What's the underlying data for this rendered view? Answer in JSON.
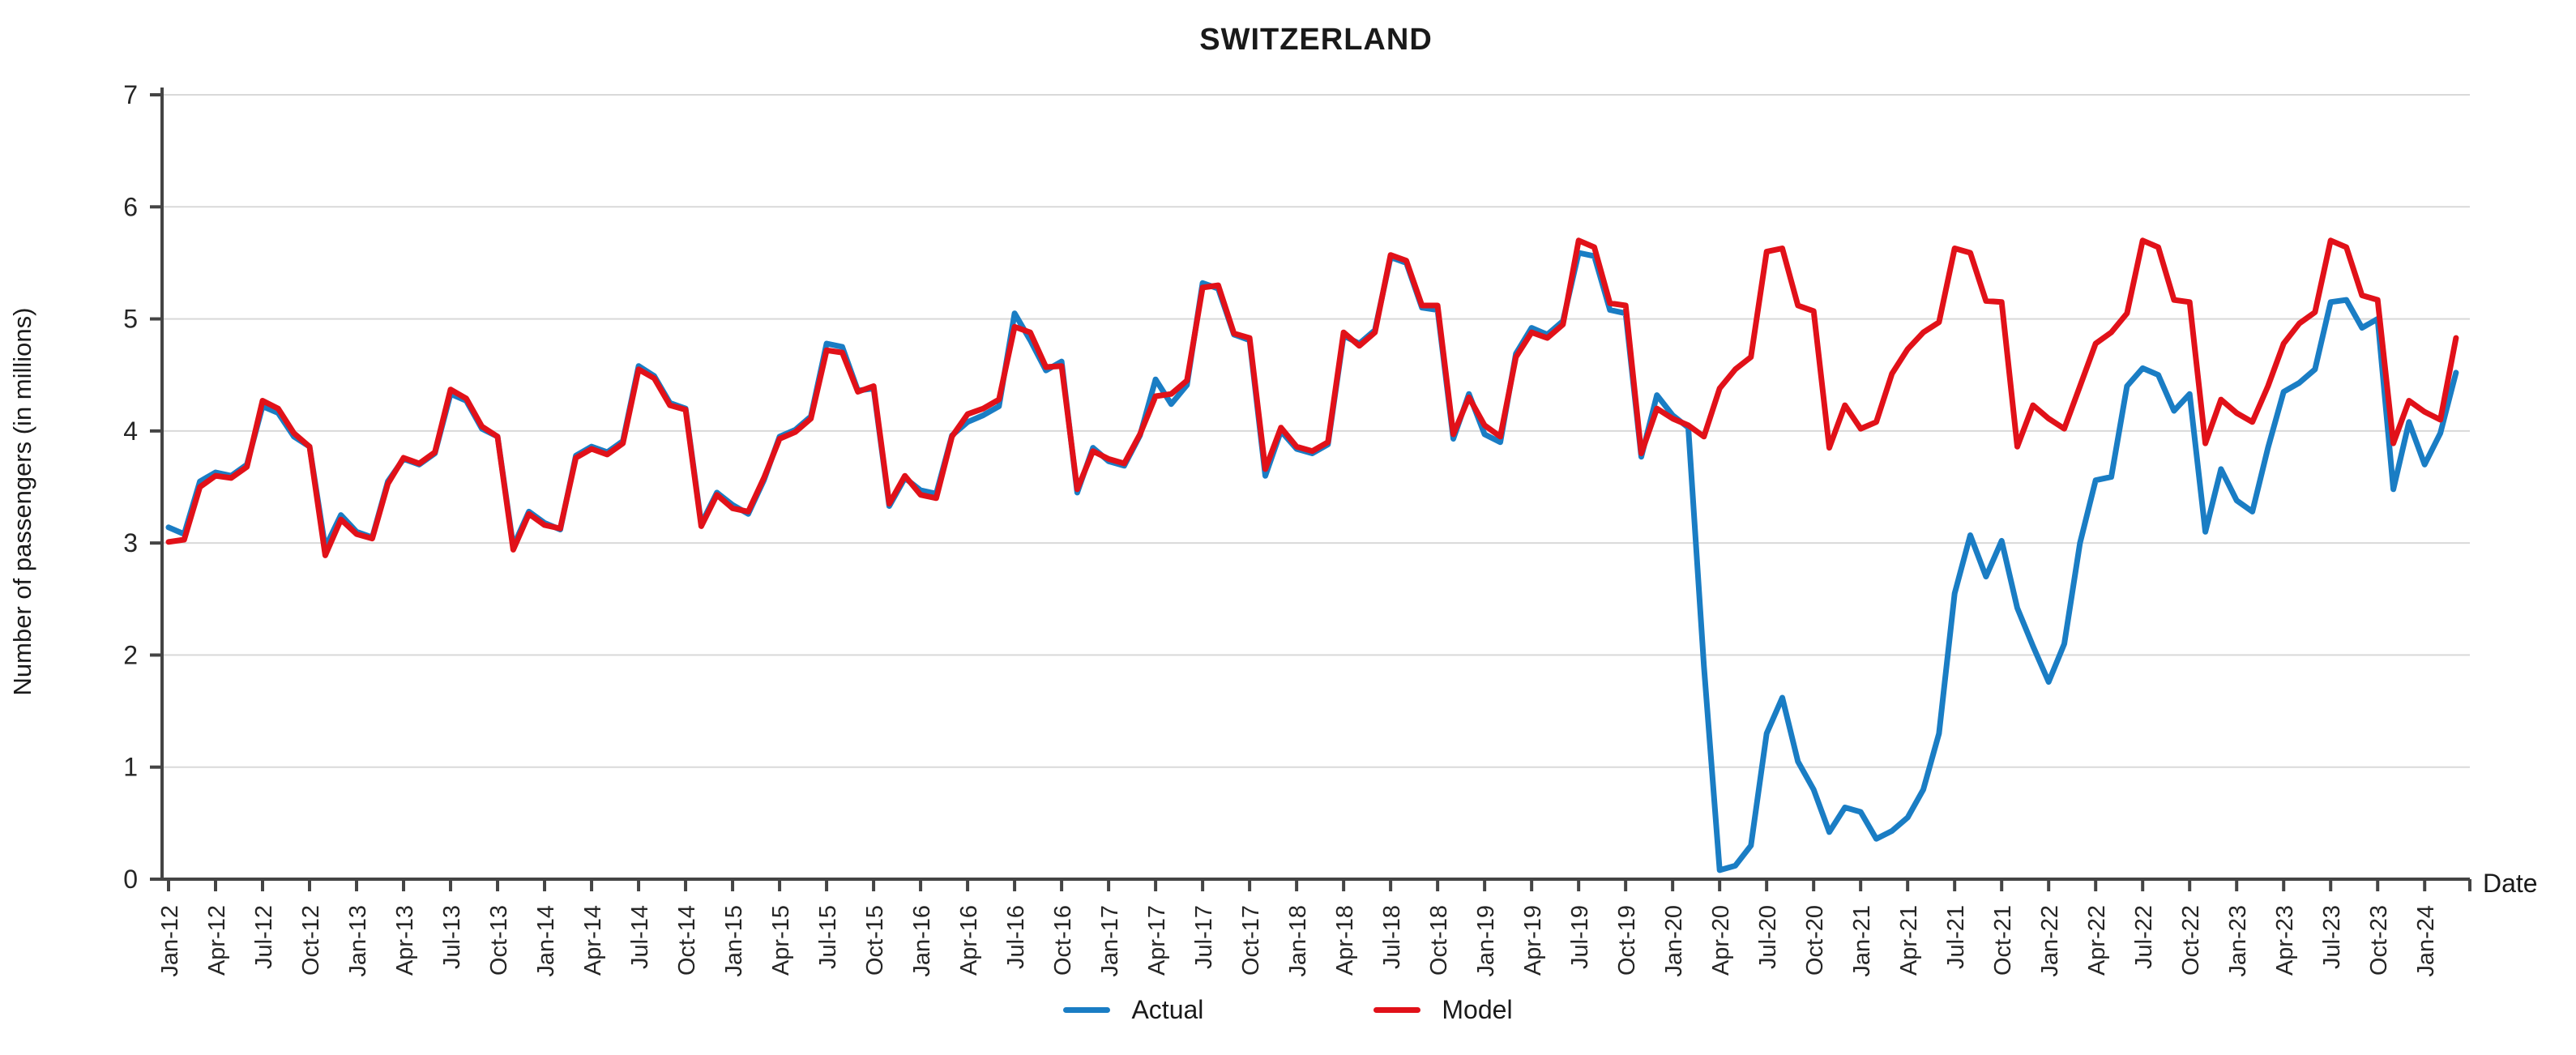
{
  "title": "SWITZERLAND",
  "y_axis": {
    "label": "Number of passengers (in millions)"
  },
  "x_axis": {
    "label": "Date"
  },
  "legend": {
    "actual_label": "Actual",
    "model_label": "Model"
  },
  "colors": {
    "actual": "#1a7dc4",
    "model": "#e11119",
    "gridline": "#d9d9d9",
    "axis": "#444444",
    "text": "#262626"
  },
  "chart_data": {
    "type": "line",
    "title": "SWITZERLAND",
    "xlabel": "Date",
    "ylabel": "Number of passengers (in millions)",
    "ylim": [
      0,
      7
    ],
    "y_ticks": [
      0,
      1,
      2,
      3,
      4,
      5,
      6,
      7
    ],
    "grid": true,
    "legend_position": "bottom",
    "x_tick_every_months": 3,
    "x": [
      "Jan-12",
      "Feb-12",
      "Mar-12",
      "Apr-12",
      "May-12",
      "Jun-12",
      "Jul-12",
      "Aug-12",
      "Sep-12",
      "Oct-12",
      "Nov-12",
      "Dec-12",
      "Jan-13",
      "Feb-13",
      "Mar-13",
      "Apr-13",
      "May-13",
      "Jun-13",
      "Jul-13",
      "Aug-13",
      "Sep-13",
      "Oct-13",
      "Nov-13",
      "Dec-13",
      "Jan-14",
      "Feb-14",
      "Mar-14",
      "Apr-14",
      "May-14",
      "Jun-14",
      "Jul-14",
      "Aug-14",
      "Sep-14",
      "Oct-14",
      "Nov-14",
      "Dec-14",
      "Jan-15",
      "Feb-15",
      "Mar-15",
      "Apr-15",
      "May-15",
      "Jun-15",
      "Jul-15",
      "Aug-15",
      "Sep-15",
      "Oct-15",
      "Nov-15",
      "Dec-15",
      "Jan-16",
      "Feb-16",
      "Mar-16",
      "Apr-16",
      "May-16",
      "Jun-16",
      "Jul-16",
      "Aug-16",
      "Sep-16",
      "Oct-16",
      "Nov-16",
      "Dec-16",
      "Jan-17",
      "Feb-17",
      "Mar-17",
      "Apr-17",
      "May-17",
      "Jun-17",
      "Jul-17",
      "Aug-17",
      "Sep-17",
      "Oct-17",
      "Nov-17",
      "Dec-17",
      "Jan-18",
      "Feb-18",
      "Mar-18",
      "Apr-18",
      "May-18",
      "Jun-18",
      "Jul-18",
      "Aug-18",
      "Sep-18",
      "Oct-18",
      "Nov-18",
      "Dec-18",
      "Jan-19",
      "Feb-19",
      "Mar-19",
      "Apr-19",
      "May-19",
      "Jun-19",
      "Jul-19",
      "Aug-19",
      "Sep-19",
      "Oct-19",
      "Nov-19",
      "Dec-19",
      "Jan-20",
      "Feb-20",
      "Mar-20",
      "Apr-20",
      "May-20",
      "Jun-20",
      "Jul-20",
      "Aug-20",
      "Sep-20",
      "Oct-20",
      "Nov-20",
      "Dec-20",
      "Jan-21",
      "Feb-21",
      "Mar-21",
      "Apr-21",
      "May-21",
      "Jun-21",
      "Jul-21",
      "Aug-21",
      "Sep-21",
      "Oct-21",
      "Nov-21",
      "Dec-21",
      "Jan-22",
      "Feb-22",
      "Mar-22",
      "Apr-22",
      "May-22",
      "Jun-22",
      "Jul-22",
      "Aug-22",
      "Sep-22",
      "Oct-22",
      "Nov-22",
      "Dec-22",
      "Jan-23",
      "Feb-23",
      "Mar-23",
      "Apr-23",
      "May-23",
      "Jun-23",
      "Jul-23",
      "Aug-23",
      "Sep-23",
      "Oct-23",
      "Nov-23",
      "Dec-23",
      "Jan-24",
      "Feb-24",
      "Mar-24"
    ],
    "series": [
      {
        "name": "Actual",
        "color": "#1a7dc4",
        "values": [
          3.14,
          3.08,
          3.55,
          3.63,
          3.6,
          3.7,
          4.22,
          4.16,
          3.95,
          3.86,
          2.96,
          3.25,
          3.1,
          3.05,
          3.55,
          3.75,
          3.7,
          3.8,
          4.33,
          4.27,
          4.02,
          3.95,
          2.97,
          3.28,
          3.18,
          3.12,
          3.78,
          3.86,
          3.81,
          3.91,
          4.58,
          4.49,
          4.25,
          4.2,
          3.17,
          3.45,
          3.34,
          3.26,
          3.56,
          3.95,
          4.01,
          4.13,
          4.78,
          4.75,
          4.36,
          4.38,
          3.33,
          3.58,
          3.47,
          3.44,
          3.96,
          4.08,
          4.14,
          4.22,
          5.05,
          4.81,
          4.54,
          4.62,
          3.45,
          3.85,
          3.73,
          3.69,
          3.96,
          4.46,
          4.24,
          4.41,
          5.32,
          5.27,
          4.86,
          4.81,
          3.6,
          4.0,
          3.84,
          3.8,
          3.88,
          4.85,
          4.78,
          4.9,
          5.55,
          5.5,
          5.1,
          5.08,
          3.93,
          4.33,
          3.97,
          3.9,
          4.69,
          4.92,
          4.86,
          4.98,
          5.59,
          5.56,
          5.08,
          5.05,
          3.77,
          4.32,
          4.14,
          4.03,
          1.9,
          0.08,
          0.12,
          0.3,
          1.3,
          1.62,
          1.05,
          0.8,
          0.42,
          0.64,
          0.6,
          0.36,
          0.43,
          0.55,
          0.8,
          1.3,
          2.55,
          3.07,
          2.7,
          3.02,
          2.42,
          2.08,
          1.76,
          2.1,
          3.0,
          3.56,
          3.59,
          4.4,
          4.56,
          4.5,
          4.18,
          4.33,
          3.1,
          3.66,
          3.38,
          3.28,
          3.85,
          4.35,
          4.43,
          4.55,
          5.15,
          5.17,
          4.92,
          5.0,
          3.48,
          4.08,
          3.7,
          3.98,
          4.52
        ]
      },
      {
        "name": "Model",
        "color": "#e11119",
        "values": [
          3.01,
          3.03,
          3.5,
          3.6,
          3.58,
          3.68,
          4.27,
          4.2,
          3.98,
          3.86,
          2.89,
          3.21,
          3.08,
          3.04,
          3.53,
          3.76,
          3.71,
          3.81,
          4.37,
          4.29,
          4.04,
          3.95,
          2.94,
          3.26,
          3.16,
          3.13,
          3.76,
          3.84,
          3.79,
          3.89,
          4.55,
          4.47,
          4.23,
          4.19,
          3.15,
          3.43,
          3.31,
          3.28,
          3.58,
          3.93,
          3.99,
          4.11,
          4.72,
          4.7,
          4.35,
          4.4,
          3.35,
          3.6,
          3.43,
          3.4,
          3.95,
          4.15,
          4.2,
          4.28,
          4.93,
          4.88,
          4.57,
          4.58,
          3.48,
          3.82,
          3.75,
          3.71,
          3.97,
          4.31,
          4.33,
          4.45,
          5.28,
          5.3,
          4.87,
          4.83,
          3.66,
          4.03,
          3.86,
          3.82,
          3.9,
          4.88,
          4.76,
          4.88,
          5.57,
          5.52,
          5.12,
          5.12,
          3.97,
          4.3,
          4.05,
          3.95,
          4.66,
          4.88,
          4.83,
          4.95,
          5.7,
          5.64,
          5.14,
          5.12,
          3.8,
          4.2,
          4.11,
          4.05,
          3.95,
          4.38,
          4.55,
          4.66,
          5.6,
          5.63,
          5.12,
          5.07,
          3.85,
          4.23,
          4.02,
          4.08,
          4.51,
          4.73,
          4.88,
          4.97,
          5.63,
          5.59,
          5.16,
          5.15,
          3.86,
          4.23,
          4.11,
          4.02,
          4.4,
          4.78,
          4.88,
          5.05,
          5.7,
          5.64,
          5.17,
          5.15,
          3.89,
          4.28,
          4.16,
          4.08,
          4.4,
          4.78,
          4.96,
          5.06,
          5.7,
          5.64,
          5.21,
          5.17,
          3.89,
          4.27,
          4.17,
          4.1,
          4.83
        ]
      }
    ]
  }
}
